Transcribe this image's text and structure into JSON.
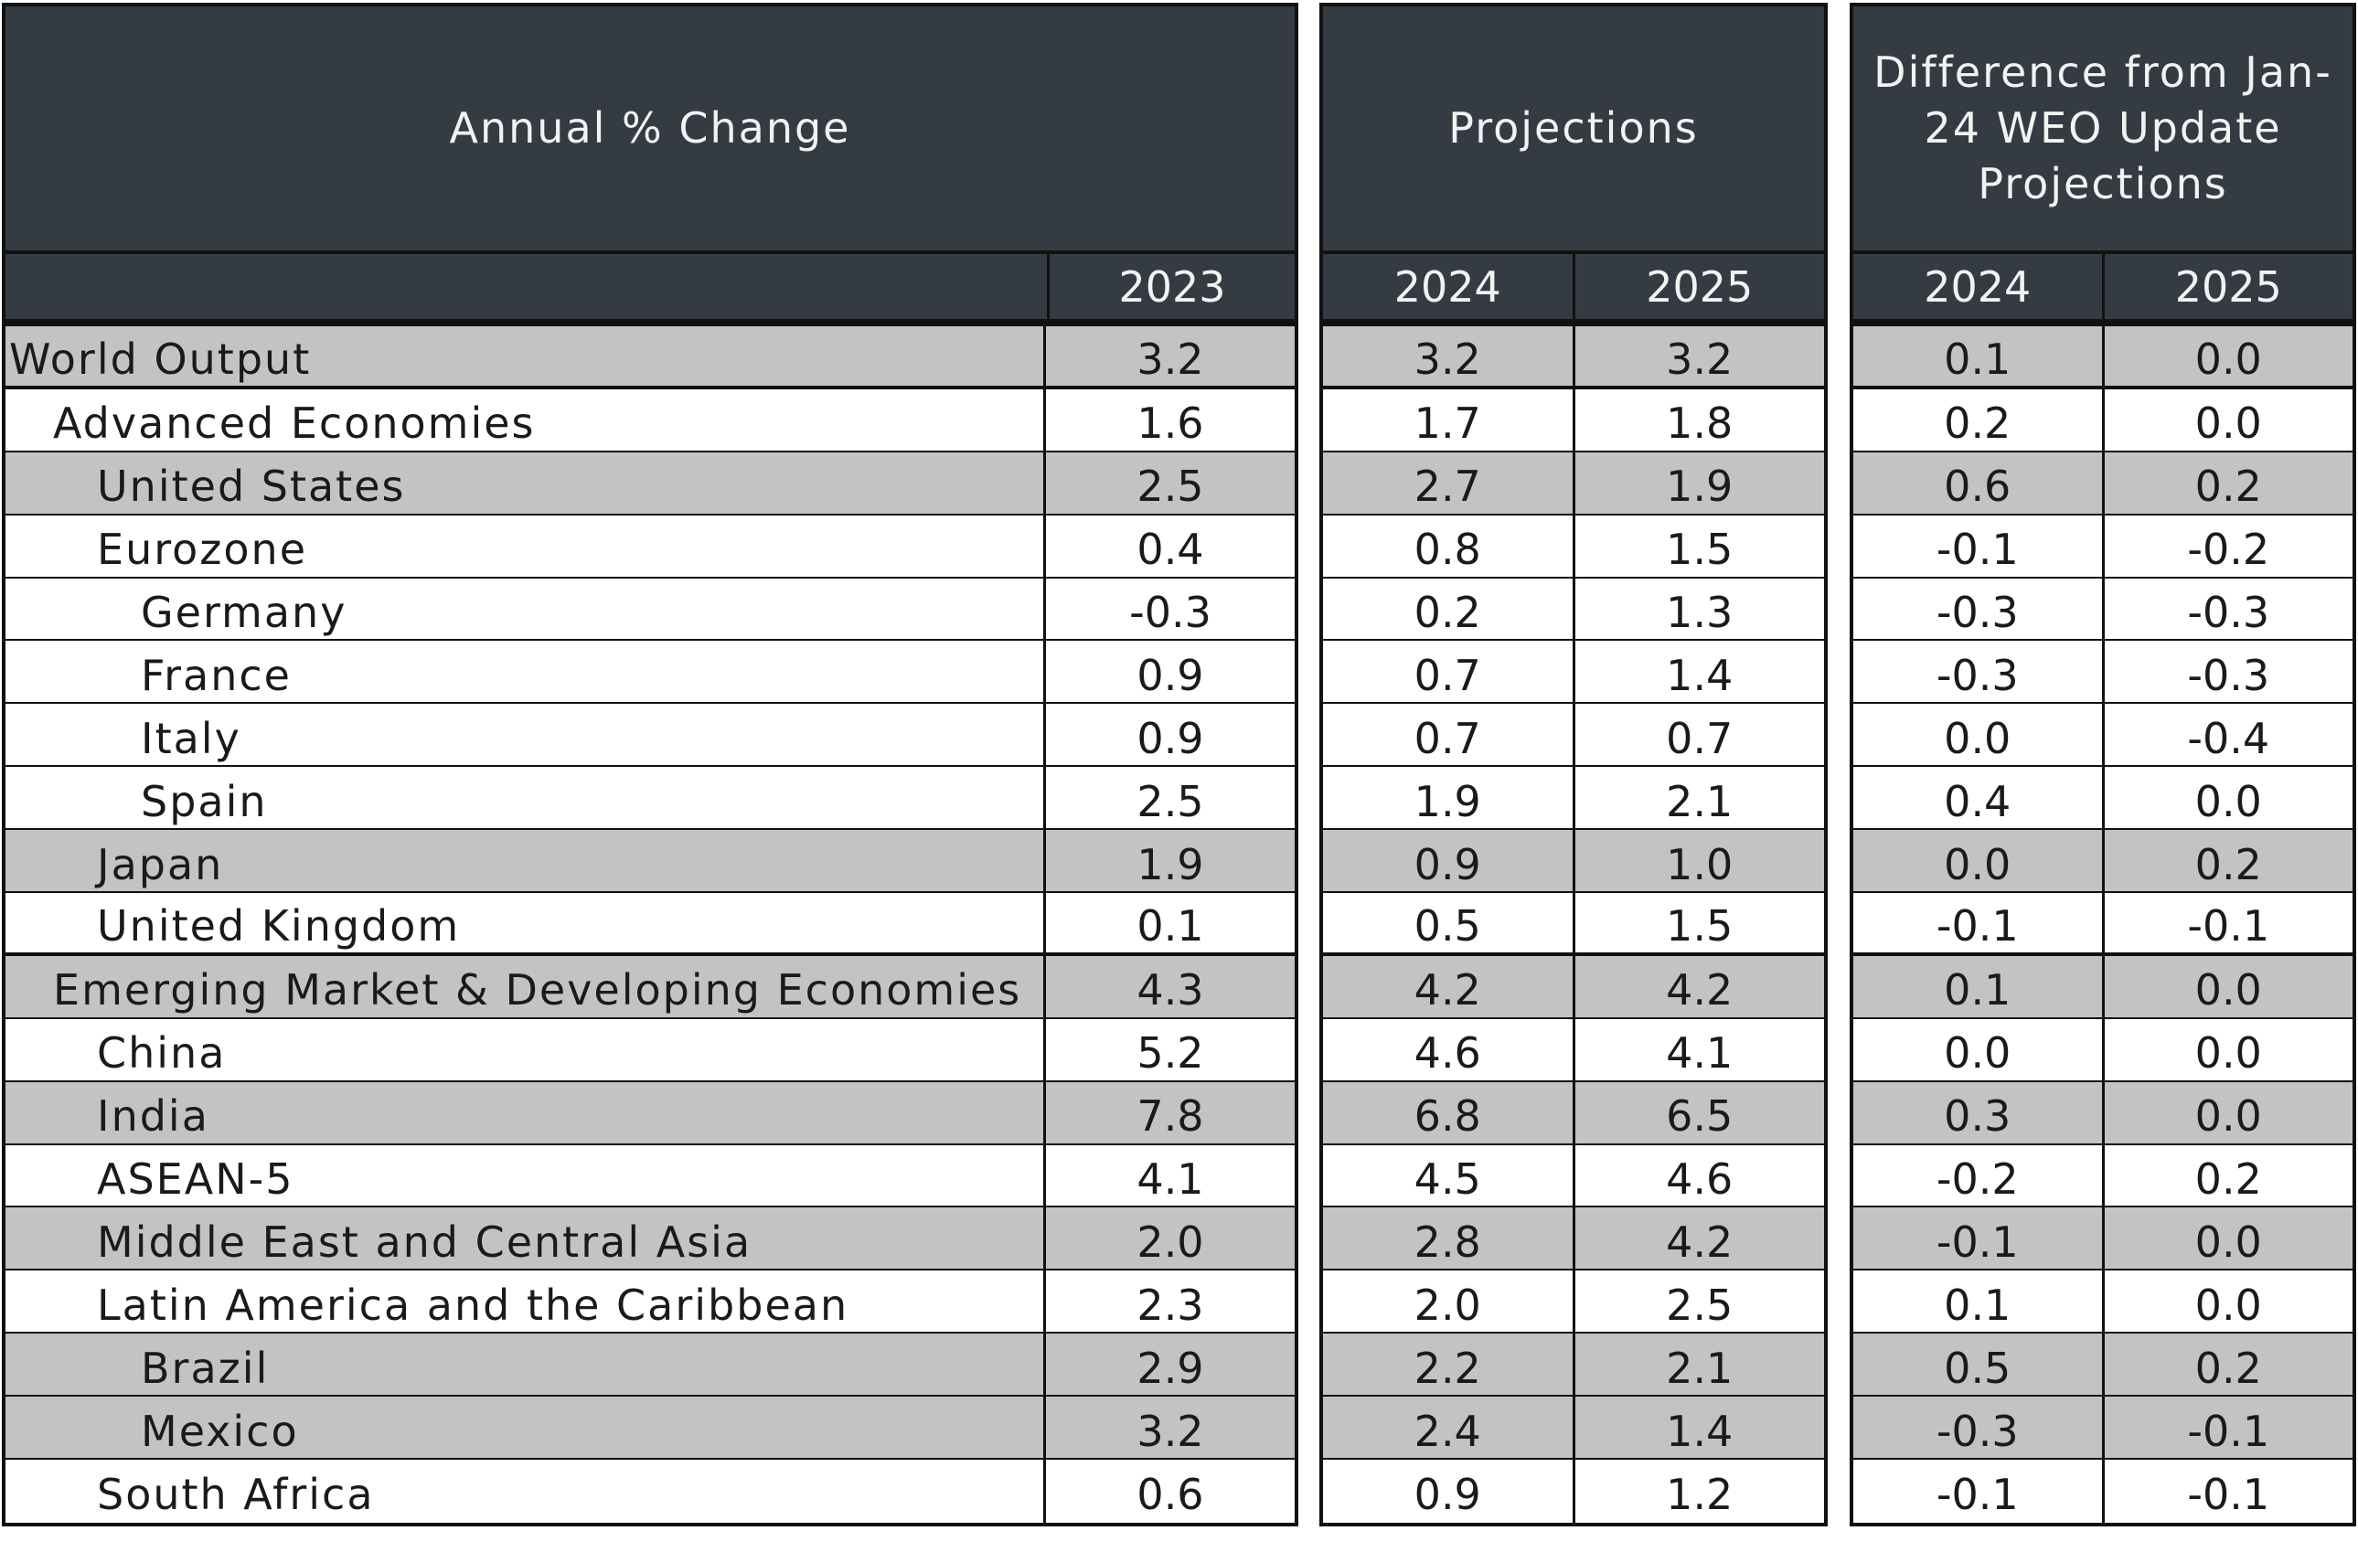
{
  "chart_data": {
    "type": "table",
    "panels": [
      {
        "header": "Annual % Change",
        "columns": [
          "",
          "2023"
        ]
      },
      {
        "header": "Projections",
        "columns": [
          "2024",
          "2025"
        ]
      },
      {
        "header": "Difference from Jan-24 WEO Update Projections",
        "columns": [
          "2024",
          "2025"
        ]
      }
    ],
    "rows": [
      {
        "label": "World Output",
        "level": 0,
        "shade": true,
        "thick": true,
        "v2023": "3.2",
        "p2024": "3.2",
        "p2025": "3.2",
        "d2024": "0.1",
        "d2025": "0.0"
      },
      {
        "label": "Advanced Economies",
        "level": 1,
        "shade": false,
        "thick": false,
        "v2023": "1.6",
        "p2024": "1.7",
        "p2025": "1.8",
        "d2024": "0.2",
        "d2025": "0.0"
      },
      {
        "label": "United States",
        "level": 2,
        "shade": true,
        "thick": false,
        "v2023": "2.5",
        "p2024": "2.7",
        "p2025": "1.9",
        "d2024": "0.6",
        "d2025": "0.2"
      },
      {
        "label": "Eurozone",
        "level": 2,
        "shade": false,
        "thick": false,
        "v2023": "0.4",
        "p2024": "0.8",
        "p2025": "1.5",
        "d2024": "-0.1",
        "d2025": "-0.2"
      },
      {
        "label": "Germany",
        "level": 3,
        "shade": false,
        "thick": false,
        "v2023": "-0.3",
        "p2024": "0.2",
        "p2025": "1.3",
        "d2024": "-0.3",
        "d2025": "-0.3"
      },
      {
        "label": "France",
        "level": 3,
        "shade": false,
        "thick": false,
        "v2023": "0.9",
        "p2024": "0.7",
        "p2025": "1.4",
        "d2024": "-0.3",
        "d2025": "-0.3"
      },
      {
        "label": "Italy",
        "level": 3,
        "shade": false,
        "thick": false,
        "v2023": "0.9",
        "p2024": "0.7",
        "p2025": "0.7",
        "d2024": "0.0",
        "d2025": "-0.4"
      },
      {
        "label": "Spain",
        "level": 3,
        "shade": false,
        "thick": false,
        "v2023": "2.5",
        "p2024": "1.9",
        "p2025": "2.1",
        "d2024": "0.4",
        "d2025": "0.0"
      },
      {
        "label": "Japan",
        "level": 2,
        "shade": true,
        "thick": false,
        "v2023": "1.9",
        "p2024": "0.9",
        "p2025": "1.0",
        "d2024": "0.0",
        "d2025": "0.2"
      },
      {
        "label": "United Kingdom",
        "level": 2,
        "shade": false,
        "thick": true,
        "v2023": "0.1",
        "p2024": "0.5",
        "p2025": "1.5",
        "d2024": "-0.1",
        "d2025": "-0.1"
      },
      {
        "label": "Emerging Market & Developing Economies",
        "level": 1,
        "shade": true,
        "thick": false,
        "v2023": "4.3",
        "p2024": "4.2",
        "p2025": "4.2",
        "d2024": "0.1",
        "d2025": "0.0"
      },
      {
        "label": "China",
        "level": 2,
        "shade": false,
        "thick": false,
        "v2023": "5.2",
        "p2024": "4.6",
        "p2025": "4.1",
        "d2024": "0.0",
        "d2025": "0.0"
      },
      {
        "label": "India",
        "level": 2,
        "shade": true,
        "thick": false,
        "v2023": "7.8",
        "p2024": "6.8",
        "p2025": "6.5",
        "d2024": "0.3",
        "d2025": "0.0"
      },
      {
        "label": "ASEAN-5",
        "level": 2,
        "shade": false,
        "thick": false,
        "v2023": "4.1",
        "p2024": "4.5",
        "p2025": "4.6",
        "d2024": "-0.2",
        "d2025": "0.2"
      },
      {
        "label": "Middle East and Central Asia",
        "level": 2,
        "shade": true,
        "thick": false,
        "v2023": "2.0",
        "p2024": "2.8",
        "p2025": "4.2",
        "d2024": "-0.1",
        "d2025": "0.0"
      },
      {
        "label": "Latin America and the Caribbean",
        "level": 2,
        "shade": false,
        "thick": false,
        "v2023": "2.3",
        "p2024": "2.0",
        "p2025": "2.5",
        "d2024": "0.1",
        "d2025": "0.0"
      },
      {
        "label": "Brazil",
        "level": 3,
        "shade": true,
        "thick": false,
        "v2023": "2.9",
        "p2024": "2.2",
        "p2025": "2.1",
        "d2024": "0.5",
        "d2025": "0.2"
      },
      {
        "label": "Mexico",
        "level": 3,
        "shade": true,
        "thick": false,
        "v2023": "3.2",
        "p2024": "2.4",
        "p2025": "1.4",
        "d2024": "-0.3",
        "d2025": "-0.1"
      },
      {
        "label": "South Africa",
        "level": 2,
        "shade": false,
        "thick": false,
        "v2023": "0.6",
        "p2024": "0.9",
        "p2025": "1.2",
        "d2024": "-0.1",
        "d2025": "-0.1"
      }
    ]
  },
  "colors": {
    "header_bg": "#343b42",
    "header_text": "#f2f2f2",
    "shade_row": "#c3c3c3",
    "rule": "#111111"
  }
}
